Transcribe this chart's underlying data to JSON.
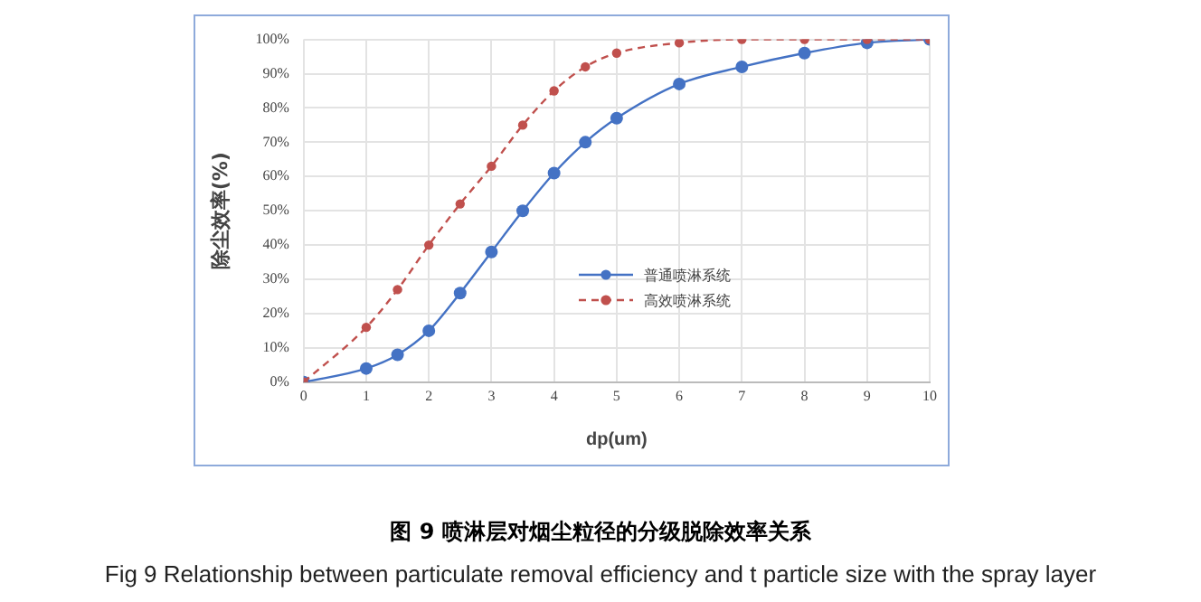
{
  "chart_data": {
    "type": "line",
    "title": "图 9  喷淋层对烟尘粒径的分级脱除效率关系",
    "subtitle": "Fig 9   Relationship between particulate removal efficiency and t particle size with the spray layer",
    "xlabel": "dp(um)",
    "ylabel": "除尘效率(%)",
    "x": [
      0,
      1,
      1.5,
      2,
      2.5,
      3,
      3.5,
      4,
      4.5,
      5,
      6,
      7,
      8,
      9,
      10
    ],
    "series": [
      {
        "name": "普通喷淋系统",
        "color": "#4472c4",
        "line_style": "solid",
        "values": [
          0,
          4,
          8,
          15,
          26,
          38,
          50,
          61,
          70,
          77,
          87,
          92,
          96,
          99,
          100
        ]
      },
      {
        "name": "高效喷淋系统",
        "color": "#c0504d",
        "line_style": "dashed",
        "values": [
          0,
          16,
          27,
          40,
          52,
          63,
          75,
          85,
          92,
          96,
          99,
          100,
          100,
          100,
          100
        ]
      }
    ],
    "xlim": [
      0,
      10
    ],
    "xticks": [
      0,
      1,
      2,
      3,
      4,
      5,
      6,
      7,
      8,
      9,
      10
    ],
    "ylim": [
      0,
      100
    ],
    "yticks": [
      {
        "value": 0,
        "label": "0%"
      },
      {
        "value": 10,
        "label": "10%"
      },
      {
        "value": 20,
        "label": "20%"
      },
      {
        "value": 30,
        "label": "30%"
      },
      {
        "value": 40,
        "label": "40%"
      },
      {
        "value": 50,
        "label": "50%"
      },
      {
        "value": 60,
        "label": "60%"
      },
      {
        "value": 70,
        "label": "70%"
      },
      {
        "value": 80,
        "label": "80%"
      },
      {
        "value": 90,
        "label": "90%"
      },
      {
        "value": 100,
        "label": "100%"
      }
    ],
    "grid": true,
    "legend": "right",
    "marker": "circle"
  }
}
